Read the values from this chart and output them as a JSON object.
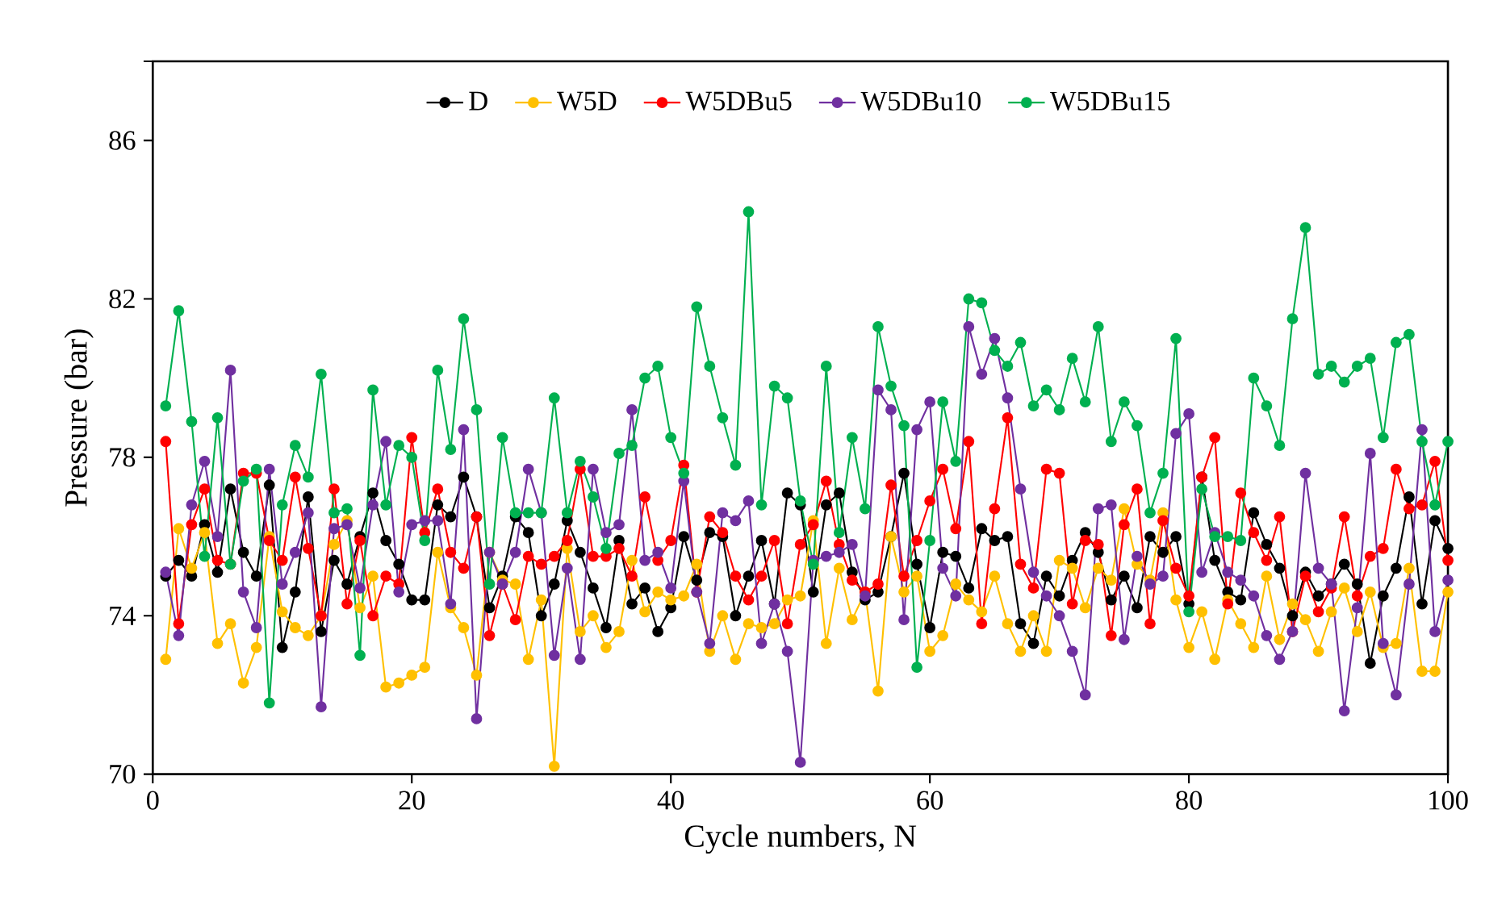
{
  "chart_data": {
    "type": "line",
    "xlabel": "Cycle numbers, N",
    "ylabel": "Pressure (bar)",
    "x": [
      1,
      2,
      3,
      4,
      5,
      6,
      7,
      8,
      9,
      10,
      11,
      12,
      13,
      14,
      15,
      16,
      17,
      18,
      19,
      20,
      21,
      22,
      23,
      24,
      25,
      26,
      27,
      28,
      29,
      30,
      31,
      32,
      33,
      34,
      35,
      36,
      37,
      38,
      39,
      40,
      41,
      42,
      43,
      44,
      45,
      46,
      47,
      48,
      49,
      50,
      51,
      52,
      53,
      54,
      55,
      56,
      57,
      58,
      59,
      60,
      61,
      62,
      63,
      64,
      65,
      66,
      67,
      68,
      69,
      70,
      71,
      72,
      73,
      74,
      75,
      76,
      77,
      78,
      79,
      80,
      81,
      82,
      83,
      84,
      85,
      86,
      87,
      88,
      89,
      90,
      91,
      92,
      93,
      94,
      95,
      96,
      97,
      98,
      99,
      100
    ],
    "xlim": [
      0,
      100
    ],
    "xticks": [
      0,
      20,
      40,
      60,
      80,
      100
    ],
    "ylim": [
      70,
      88
    ],
    "yticks": [
      70,
      74,
      78,
      82,
      86,
      {
        "value": 88,
        "label": null
      }
    ],
    "grid": false,
    "legend": "top",
    "marker": "circle",
    "line_style": "solid",
    "series": [
      {
        "name": "D",
        "color": "#000000",
        "values": [
          75.0,
          75.4,
          75.0,
          76.3,
          75.1,
          77.2,
          75.6,
          75.0,
          77.3,
          73.2,
          74.6,
          77.0,
          73.6,
          75.4,
          74.8,
          76.0,
          77.1,
          75.9,
          75.3,
          74.4,
          74.4,
          76.8,
          76.5,
          77.5,
          76.5,
          74.2,
          75.0,
          76.5,
          76.1,
          74.0,
          74.8,
          76.4,
          75.6,
          74.7,
          73.7,
          75.9,
          74.3,
          74.7,
          73.6,
          74.2,
          76.0,
          74.9,
          76.1,
          76.0,
          74.0,
          75.0,
          75.9,
          74.3,
          77.1,
          76.8,
          74.6,
          76.8,
          77.1,
          75.1,
          74.4,
          74.6,
          76.0,
          77.6,
          75.3,
          73.7,
          75.6,
          75.5,
          74.7,
          76.2,
          75.9,
          76.0,
          73.8,
          73.3,
          75.0,
          74.5,
          75.4,
          76.1,
          75.6,
          74.4,
          75.0,
          74.2,
          76.0,
          75.6,
          76.0,
          74.3,
          77.5,
          75.4,
          74.6,
          74.4,
          76.6,
          75.8,
          75.2,
          74.0,
          75.1,
          74.5,
          74.8,
          75.3,
          74.8,
          72.8,
          74.5,
          75.2,
          77.0,
          74.3,
          76.4,
          75.7
        ]
      },
      {
        "name": "W5D",
        "color": "#ffc000",
        "values": [
          72.9,
          76.2,
          75.2,
          76.1,
          73.3,
          73.8,
          72.3,
          73.2,
          76.0,
          74.1,
          73.7,
          73.5,
          74.0,
          75.8,
          76.4,
          74.2,
          75.0,
          72.2,
          72.3,
          72.5,
          72.7,
          75.6,
          74.2,
          73.7,
          72.5,
          75.6,
          74.9,
          74.8,
          72.9,
          74.4,
          70.2,
          75.7,
          73.6,
          74.0,
          73.2,
          73.6,
          75.4,
          74.1,
          74.6,
          74.4,
          74.5,
          75.3,
          73.1,
          74.0,
          72.9,
          73.8,
          73.7,
          73.8,
          74.4,
          74.5,
          76.4,
          73.3,
          75.2,
          73.9,
          74.6,
          72.1,
          76.0,
          74.6,
          75.0,
          73.1,
          73.5,
          74.8,
          74.4,
          74.1,
          75.0,
          73.8,
          73.1,
          74.0,
          73.1,
          75.4,
          75.2,
          74.2,
          75.2,
          74.9,
          76.7,
          75.3,
          74.9,
          76.6,
          74.4,
          73.2,
          74.1,
          72.9,
          74.4,
          73.8,
          73.2,
          75.0,
          73.4,
          74.3,
          73.9,
          73.1,
          74.1,
          74.7,
          73.6,
          74.6,
          73.2,
          73.3,
          75.2,
          72.6,
          72.6,
          74.6
        ]
      },
      {
        "name": "W5DBu5",
        "color": "#ff0000",
        "values": [
          78.4,
          73.8,
          76.3,
          77.2,
          75.4,
          75.3,
          77.6,
          77.6,
          75.9,
          75.4,
          77.5,
          75.7,
          74.0,
          77.2,
          74.3,
          75.9,
          74.0,
          75.0,
          74.8,
          78.5,
          76.1,
          77.2,
          75.6,
          75.2,
          76.5,
          73.5,
          74.8,
          73.9,
          75.5,
          75.3,
          75.5,
          75.9,
          77.7,
          75.5,
          75.5,
          75.7,
          75.0,
          77.0,
          75.4,
          75.9,
          77.8,
          74.6,
          76.5,
          76.1,
          75.0,
          74.4,
          75.0,
          75.9,
          73.8,
          75.8,
          76.3,
          77.4,
          75.8,
          74.9,
          74.6,
          74.8,
          77.3,
          75.0,
          75.9,
          76.9,
          77.7,
          76.2,
          78.4,
          73.8,
          76.7,
          79.0,
          75.3,
          74.7,
          77.7,
          77.6,
          74.3,
          75.9,
          75.8,
          73.5,
          76.3,
          77.2,
          73.8,
          76.4,
          75.2,
          74.5,
          77.5,
          78.5,
          74.3,
          77.1,
          76.1,
          75.4,
          76.5,
          73.6,
          75.0,
          74.1,
          74.7,
          76.5,
          74.5,
          75.5,
          75.7,
          77.7,
          76.7,
          76.8,
          77.9,
          75.4
        ]
      },
      {
        "name": "W5DBu10",
        "color": "#7030a0",
        "values": [
          75.1,
          73.5,
          76.8,
          77.9,
          76.0,
          80.2,
          74.6,
          73.7,
          77.7,
          74.8,
          75.6,
          76.6,
          71.7,
          76.2,
          76.3,
          74.7,
          76.8,
          78.4,
          74.6,
          76.3,
          76.4,
          76.4,
          74.3,
          78.7,
          71.4,
          75.6,
          74.8,
          75.6,
          77.7,
          76.6,
          73.0,
          75.2,
          72.9,
          77.7,
          76.1,
          76.3,
          79.2,
          75.4,
          75.6,
          74.7,
          77.4,
          74.6,
          73.3,
          76.6,
          76.4,
          76.9,
          73.3,
          74.3,
          73.1,
          70.3,
          75.4,
          75.5,
          75.6,
          75.8,
          74.5,
          79.7,
          79.2,
          73.9,
          78.7,
          79.4,
          75.2,
          74.5,
          81.3,
          80.1,
          81.0,
          79.5,
          77.2,
          75.1,
          74.5,
          74.0,
          73.1,
          72.0,
          76.7,
          76.8,
          73.4,
          75.5,
          74.8,
          75.0,
          78.6,
          79.1,
          75.1,
          76.1,
          75.1,
          74.9,
          74.5,
          73.5,
          72.9,
          73.6,
          77.6,
          75.2,
          74.8,
          71.6,
          74.2,
          78.1,
          73.3,
          72.0,
          74.8,
          78.7,
          73.6,
          74.9
        ]
      },
      {
        "name": "W5DBu15",
        "color": "#00b050",
        "values": [
          79.3,
          81.7,
          78.9,
          75.5,
          79.0,
          75.3,
          77.4,
          77.7,
          71.8,
          76.8,
          78.3,
          77.5,
          80.1,
          76.6,
          76.7,
          73.0,
          79.7,
          76.8,
          78.3,
          78.0,
          75.9,
          80.2,
          78.2,
          81.5,
          79.2,
          74.8,
          78.5,
          76.6,
          76.6,
          76.6,
          79.5,
          76.6,
          77.9,
          77.0,
          75.7,
          78.1,
          78.3,
          80.0,
          80.3,
          78.5,
          77.6,
          81.8,
          80.3,
          79.0,
          77.8,
          84.2,
          76.8,
          79.8,
          79.5,
          76.9,
          75.3,
          80.3,
          76.1,
          78.5,
          76.7,
          81.3,
          79.8,
          78.8,
          72.7,
          75.9,
          79.4,
          77.9,
          82.0,
          81.9,
          80.7,
          80.3,
          80.9,
          79.3,
          79.7,
          79.2,
          80.5,
          79.4,
          81.3,
          78.4,
          79.4,
          78.8,
          76.6,
          77.6,
          81.0,
          74.1,
          77.2,
          76.0,
          76.0,
          75.9,
          80.0,
          79.3,
          78.3,
          81.5,
          83.8,
          80.1,
          80.3,
          79.9,
          80.3,
          80.5,
          78.5,
          80.9,
          81.1,
          78.4,
          76.8,
          78.4
        ]
      }
    ]
  }
}
